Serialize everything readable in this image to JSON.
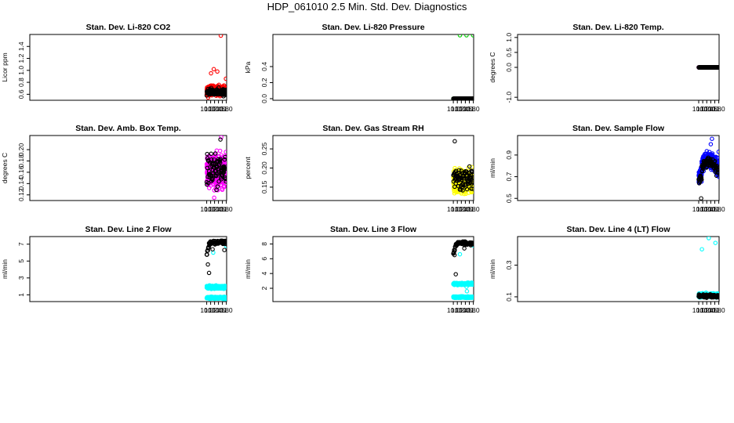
{
  "page": {
    "title": "HDP_061010  2.5 Min. Std. Dev. Diagnostics"
  },
  "chart_data": [
    {
      "type": "scatter",
      "title": "Stan. Dev. Li-820 CO2",
      "ylabel": "Licor ppm",
      "xlim": [
        0.985,
        11.015
      ],
      "ylim": [
        0.5,
        1.6
      ],
      "xticks": [
        10.0,
        10.2,
        10.4,
        10.6,
        10.8,
        11.0
      ],
      "xtick_labels": [
        "10.0",
        "10.2",
        "10.4",
        "10.6",
        "10.8",
        "11.0"
      ],
      "yticks": [
        0.6,
        0.8,
        1.0,
        1.2,
        1.4
      ],
      "ytick_labels": [
        "0.6",
        "0.8",
        "1.0",
        "1.2",
        "1.4"
      ],
      "series": [
        {
          "color": "#ff0000",
          "gen": {
            "seed": 11,
            "n": 420,
            "base": 0.66,
            "spread": 0.08,
            "spikes": [
              [
                10.72,
                1.58
              ],
              [
                10.36,
                1.02
              ],
              [
                10.54,
                0.98
              ],
              [
                10.22,
                0.95
              ],
              [
                10.98,
                0.86
              ]
            ]
          }
        },
        {
          "color": "#000000",
          "gen": {
            "seed": 12,
            "n": 110,
            "base": 0.64,
            "spread": 0.06,
            "spikes": []
          }
        }
      ]
    },
    {
      "type": "scatter",
      "title": "Stan. Dev. Li-820 Pressure",
      "ylabel": "kPa",
      "xlim": [
        0.985,
        11.015
      ],
      "ylim": [
        -0.02,
        0.8
      ],
      "xticks": [
        10.0,
        10.2,
        10.4,
        10.6,
        10.8,
        11.0
      ],
      "xtick_labels": [
        "10.0",
        "10.2",
        "10.4",
        "10.6",
        "10.8",
        "11.0"
      ],
      "yticks": [
        0.0,
        0.2,
        0.4
      ],
      "ytick_labels": [
        "0.0",
        "0.2",
        "0.4"
      ],
      "series": [
        {
          "color": "#00cc00",
          "gen": {
            "seed": 21,
            "n": 190,
            "base": 0.0,
            "spread": 0.0,
            "spikes": [
              [
                10.33,
                0.79
              ],
              [
                10.66,
                0.79
              ],
              [
                10.99,
                0.79
              ]
            ]
          }
        },
        {
          "color": "#000000",
          "gen": {
            "seed": 22,
            "n": 190,
            "base": 0.0,
            "spread": 0.0,
            "spikes": []
          }
        }
      ]
    },
    {
      "type": "scatter",
      "title": "Stan. Dev. Li-820 Temp.",
      "ylabel": "degrees C",
      "xlim": [
        0.985,
        11.015
      ],
      "ylim": [
        -1.1,
        1.1
      ],
      "xticks": [
        10.0,
        10.2,
        10.4,
        10.6,
        10.8,
        11.0
      ],
      "xtick_labels": [
        "10.0",
        "10.2",
        "10.4",
        "10.6",
        "10.8",
        "11.0"
      ],
      "yticks": [
        -1.0,
        0.0,
        0.5,
        1.0
      ],
      "ytick_labels": [
        "-1.0",
        "0.0",
        "0.5",
        "1.0"
      ],
      "series": [
        {
          "color": "#ff00ff",
          "gen": {
            "seed": 31,
            "n": 190,
            "base": 0.0,
            "spread": 0.0,
            "spikes": []
          }
        },
        {
          "color": "#000000",
          "gen": {
            "seed": 32,
            "n": 190,
            "base": 0.0,
            "spread": 0.0,
            "spikes": []
          }
        }
      ]
    },
    {
      "type": "scatter",
      "title": "Stan. Dev. Amb. Box Temp.",
      "ylabel": "degrees C",
      "xlim": [
        0.985,
        11.015
      ],
      "ylim": [
        0.11,
        0.225
      ],
      "xticks": [
        10.0,
        10.2,
        10.4,
        10.6,
        10.8,
        11.0
      ],
      "xtick_labels": [
        "10.0",
        "10.2",
        "10.4",
        "10.6",
        "10.8",
        "11.0"
      ],
      "yticks": [
        0.12,
        0.14,
        0.16,
        0.18,
        0.2
      ],
      "ytick_labels": [
        "0.12",
        "0.14",
        "0.16",
        "0.18",
        "0.20"
      ],
      "series": [
        {
          "color": "#ff00ff",
          "gen": {
            "seed": 41,
            "n": 420,
            "base": 0.162,
            "spread": 0.028,
            "spikes": [
              [
                10.74,
                0.222
              ],
              [
                10.38,
                0.115
              ]
            ]
          }
        },
        {
          "color": "#000000",
          "gen": {
            "seed": 42,
            "n": 90,
            "base": 0.163,
            "spread": 0.03,
            "spikes": [
              [
                10.7,
                0.218
              ]
            ]
          }
        }
      ]
    },
    {
      "type": "scatter",
      "title": "Stan. Dev. Gas Stream RH",
      "ylabel": "percent",
      "xlim": [
        0.985,
        11.015
      ],
      "ylim": [
        0.115,
        0.285
      ],
      "xticks": [
        10.0,
        10.2,
        10.4,
        10.6,
        10.8,
        11.0
      ],
      "xtick_labels": [
        "10.0",
        "10.2",
        "10.4",
        "10.6",
        "10.8",
        "11.0"
      ],
      "yticks": [
        0.15,
        0.2,
        0.25
      ],
      "ytick_labels": [
        "0.15",
        "0.20",
        "0.25"
      ],
      "series": [
        {
          "color": "#ffff00",
          "gen": {
            "seed": 51,
            "n": 420,
            "base": 0.165,
            "spread": 0.03,
            "spikes": []
          }
        },
        {
          "color": "#000000",
          "gen": {
            "seed": 52,
            "n": 90,
            "base": 0.175,
            "spread": 0.03,
            "spikes": [
              [
                10.07,
                0.27
              ]
            ]
          }
        }
      ]
    },
    {
      "type": "scatter",
      "title": "Stan. Dev. Sample Flow",
      "ylabel": "ml/min",
      "xlim": [
        0.985,
        11.015
      ],
      "ylim": [
        0.48,
        1.08
      ],
      "xticks": [
        10.0,
        10.2,
        10.4,
        10.6,
        10.8,
        11.0
      ],
      "xtick_labels": [
        "10.0",
        "10.2",
        "10.4",
        "10.6",
        "10.8",
        "11.0"
      ],
      "yticks": [
        0.5,
        0.7,
        0.9
      ],
      "ytick_labels": [
        "0.5",
        "0.7",
        "0.9"
      ],
      "series": [
        {
          "color": "#0000ff",
          "gen": {
            "seed": 61,
            "n": 420,
            "base": 0.76,
            "spread": 0.07,
            "trend": "flow",
            "spikes": [
              [
                10.66,
                1.05
              ],
              [
                10.6,
                1.0
              ],
              [
                10.99,
                0.93
              ]
            ]
          }
        },
        {
          "color": "#000000",
          "gen": {
            "seed": 62,
            "n": 90,
            "base": 0.74,
            "spread": 0.05,
            "trend": "flow",
            "spikes": [
              [
                10.12,
                0.5
              ]
            ]
          }
        }
      ]
    },
    {
      "type": "scatter",
      "title": "Stan. Dev. Line 2 Flow",
      "ylabel": "ml/min",
      "xlim": [
        0.985,
        11.015
      ],
      "ylim": [
        0.2,
        7.9
      ],
      "xticks": [
        10.0,
        10.2,
        10.4,
        10.6,
        10.8,
        11.0
      ],
      "xtick_labels": [
        "10.0",
        "10.2",
        "10.4",
        "10.6",
        "10.8",
        "11.0"
      ],
      "yticks": [
        1,
        3,
        5,
        7
      ],
      "ytick_labels": [
        "1",
        "3",
        "5",
        "7"
      ],
      "series": [
        {
          "color": "#00ffff",
          "gen": {
            "seed": 71,
            "n": 260,
            "base": 1.9,
            "spread": 0.18,
            "spikes": [
              [
                10.33,
                6.0
              ],
              [
                10.99,
                6.8
              ]
            ]
          }
        },
        {
          "color": "#00ffff",
          "gen": {
            "seed": 72,
            "n": 260,
            "base": 0.65,
            "spread": 0.12,
            "spikes": []
          }
        },
        {
          "color": "#000000",
          "gen": {
            "seed": 73,
            "n": 70,
            "base": 7.2,
            "spread": 0.25,
            "trend": "rise",
            "spikes": [
              [
                10.06,
                4.6
              ],
              [
                10.12,
                3.6
              ],
              [
                10.3,
                6.4
              ],
              [
                10.9,
                6.3
              ]
            ]
          }
        }
      ]
    },
    {
      "type": "scatter",
      "title": "Stan. Dev. Line 3 Flow",
      "ylabel": "ml/min",
      "xlim": [
        0.985,
        11.015
      ],
      "ylim": [
        0.2,
        9.0
      ],
      "xticks": [
        10.0,
        10.2,
        10.4,
        10.6,
        10.8,
        11.0
      ],
      "xtick_labels": [
        "10.0",
        "10.2",
        "10.4",
        "10.6",
        "10.8",
        "11.0"
      ],
      "yticks": [
        2,
        4,
        6,
        8
      ],
      "ytick_labels": [
        "2",
        "4",
        "6",
        "8"
      ],
      "series": [
        {
          "color": "#00ffff",
          "gen": {
            "seed": 81,
            "n": 260,
            "base": 2.6,
            "spread": 0.15,
            "spikes": [
              [
                10.33,
                6.6
              ],
              [
                10.66,
                2.2
              ],
              [
                10.68,
                1.6
              ],
              [
                10.99,
                7.8
              ]
            ]
          }
        },
        {
          "color": "#00ffff",
          "gen": {
            "seed": 82,
            "n": 260,
            "base": 0.8,
            "spread": 0.1,
            "spikes": []
          }
        },
        {
          "color": "#000000",
          "gen": {
            "seed": 83,
            "n": 70,
            "base": 8.1,
            "spread": 0.25,
            "trend": "rise",
            "spikes": [
              [
                10.06,
                6.5
              ],
              [
                10.12,
                3.9
              ],
              [
                10.55,
                7.4
              ]
            ]
          }
        }
      ]
    },
    {
      "type": "scatter",
      "title": "Stan. Dev. Line 4 (LT) Flow",
      "ylabel": "ml/min",
      "xlim": [
        0.985,
        11.015
      ],
      "ylim": [
        0.07,
        0.48
      ],
      "xticks": [
        10.0,
        10.2,
        10.4,
        10.6,
        10.8,
        11.0
      ],
      "xtick_labels": [
        "10.0",
        "10.2",
        "10.4",
        "10.6",
        "10.8",
        "11.0"
      ],
      "yticks": [
        0.1,
        0.3
      ],
      "ytick_labels": [
        "0.1",
        "0.3"
      ],
      "series": [
        {
          "color": "#00ffff",
          "gen": {
            "seed": 91,
            "n": 420,
            "base": 0.11,
            "spread": 0.012,
            "spikes": [
              [
                10.16,
                0.4
              ],
              [
                10.5,
                0.47
              ],
              [
                10.83,
                0.44
              ]
            ]
          }
        },
        {
          "color": "#000000",
          "gen": {
            "seed": 92,
            "n": 90,
            "base": 0.105,
            "spread": 0.012,
            "spikes": []
          }
        }
      ]
    }
  ]
}
